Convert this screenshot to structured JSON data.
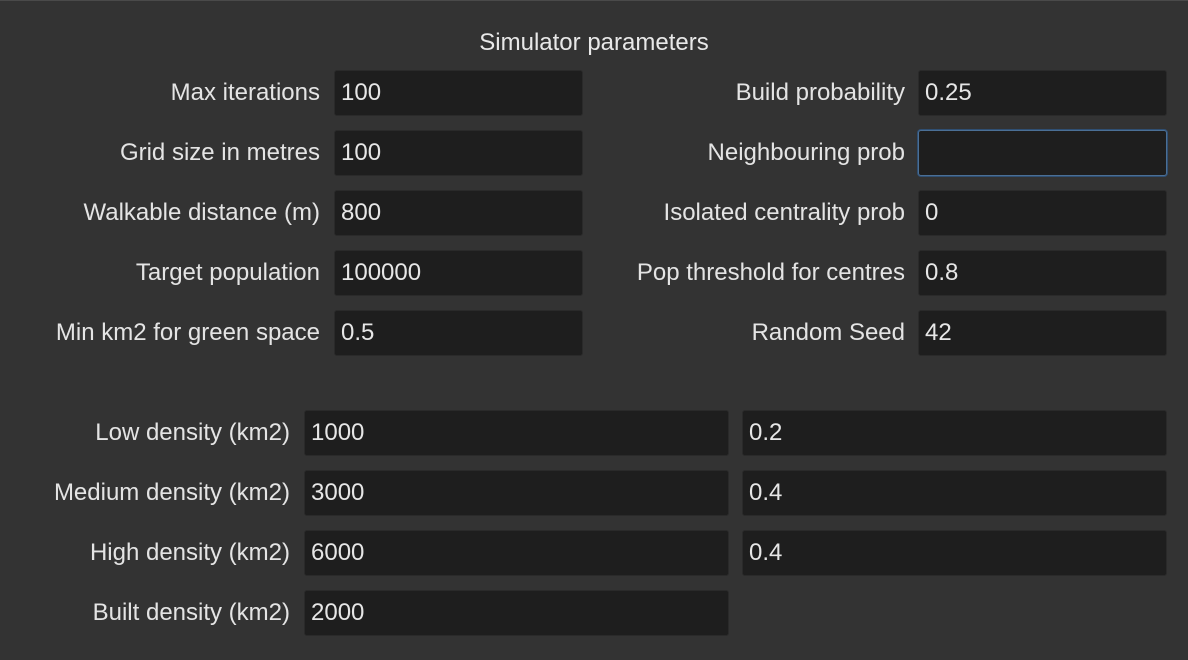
{
  "title": "Simulator parameters",
  "left": [
    {
      "label": "Max iterations",
      "value": "100"
    },
    {
      "label": "Grid size in metres",
      "value": "100"
    },
    {
      "label": "Walkable distance (m)",
      "value": "800"
    },
    {
      "label": "Target population",
      "value": "100000"
    },
    {
      "label": "Min km2 for green space",
      "value": "0.5"
    }
  ],
  "right": [
    {
      "label": "Build probability",
      "value": "0.25"
    },
    {
      "label": "Neighbouring prob",
      "value": ""
    },
    {
      "label": "Isolated centrality prob",
      "value": "0"
    },
    {
      "label": "Pop threshold for centres",
      "value": "0.8"
    },
    {
      "label": "Random Seed",
      "value": "42"
    }
  ],
  "density": [
    {
      "label": "Low density (km2)",
      "value": "1000",
      "prob": "0.2"
    },
    {
      "label": "Medium density (km2)",
      "value": "3000",
      "prob": "0.4"
    },
    {
      "label": "High density (km2)",
      "value": "6000",
      "prob": "0.4"
    },
    {
      "label": "Built density (km2)",
      "value": "2000"
    }
  ]
}
